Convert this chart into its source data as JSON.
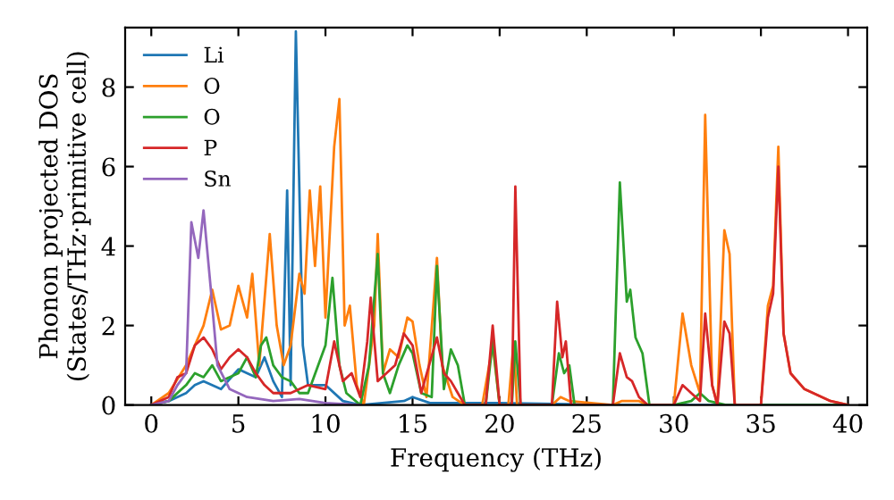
{
  "chart_data": {
    "type": "line",
    "xlabel": "Frequency (THz)",
    "ylabel": "Phonon projected DOS\n(States/THz·primitive cell)",
    "xlim": [
      -1.5,
      41.1
    ],
    "ylim": [
      0,
      9.5
    ],
    "xticks": [
      0,
      5,
      10,
      15,
      20,
      25,
      30,
      35,
      40
    ],
    "yticks": [
      0,
      2,
      4,
      6,
      8
    ],
    "legend": "top left",
    "grid": false,
    "marker": "none",
    "line_style": "solid",
    "series": [
      {
        "name": "Li",
        "color": "#1f77b4",
        "x": [
          0,
          1,
          2,
          2.5,
          3,
          4,
          5,
          6,
          6.5,
          7,
          7.5,
          7.8,
          8.0,
          8.3,
          8.7,
          9,
          10,
          11,
          12,
          14.5,
          15,
          16,
          20,
          27,
          40
        ],
        "values": [
          0,
          0.1,
          0.3,
          0.5,
          0.6,
          0.4,
          0.9,
          0.7,
          1.2,
          0.6,
          0.2,
          5.4,
          0.5,
          9.4,
          1.5,
          0.5,
          0.5,
          0.1,
          0,
          0.1,
          0.2,
          0.05,
          0.05,
          0,
          0
        ]
      },
      {
        "name": "O",
        "color": "#ff7f0e",
        "x": [
          0,
          1,
          2,
          2.5,
          3,
          3.5,
          4,
          4.5,
          5,
          5.5,
          5.8,
          6.2,
          6.8,
          7.2,
          7.6,
          8,
          8.5,
          8.8,
          9.1,
          9.4,
          9.7,
          10,
          10.5,
          10.8,
          11.1,
          11.4,
          11.8,
          12.2,
          12.8,
          13,
          13.3,
          13.7,
          14.2,
          14.7,
          15,
          15.4,
          15.8,
          16.4,
          16.7,
          17.3,
          18,
          19,
          19.6,
          20,
          20.5,
          20.8,
          21,
          23,
          23.5,
          24,
          26.5,
          27,
          28,
          28.5,
          30,
          30.5,
          31,
          31.5,
          31.8,
          32.2,
          32.5,
          32.9,
          33.2,
          33.5,
          35,
          35.4,
          35.7,
          36,
          36.3,
          36.7,
          37.5,
          39,
          40
        ],
        "values": [
          0,
          0.3,
          1.0,
          1.5,
          2.0,
          2.9,
          1.9,
          2.0,
          3.0,
          2.2,
          3.3,
          1.0,
          4.3,
          2.0,
          1.0,
          1.5,
          3.3,
          2.8,
          5.4,
          3.5,
          5.5,
          2.2,
          6.5,
          7.7,
          2.0,
          2.5,
          0.5,
          0,
          2.0,
          4.3,
          0.8,
          1.4,
          1.2,
          2.2,
          2.1,
          1.0,
          0.2,
          3.7,
          1.0,
          0.2,
          0,
          0,
          1.5,
          0,
          0,
          1.6,
          0,
          0,
          0.2,
          0.1,
          0,
          0.1,
          0.1,
          0,
          0,
          2.3,
          1.0,
          0.3,
          7.3,
          0.5,
          0,
          4.4,
          3.8,
          0,
          0,
          2.5,
          3.0,
          6.5,
          1.8,
          0.8,
          0.4,
          0.1,
          0
        ]
      },
      {
        "name": "O",
        "color": "#2ca02c",
        "x": [
          0,
          1,
          2,
          2.5,
          3,
          3.5,
          4,
          5,
          5.5,
          6,
          6.3,
          6.6,
          7,
          7.5,
          8,
          8.5,
          9,
          10,
          10.4,
          10.8,
          11.2,
          12,
          12.5,
          13,
          13.3,
          13.7,
          14.2,
          14.7,
          15,
          15.5,
          16.1,
          16.4,
          16.8,
          17.2,
          17.6,
          18,
          19.2,
          19.6,
          20,
          20.7,
          20.9,
          21.2,
          23,
          23.4,
          23.7,
          24,
          24.3,
          26.5,
          26.9,
          27.3,
          27.5,
          27.8,
          28.2,
          28.6,
          30,
          31,
          31.5,
          32,
          33,
          40
        ],
        "values": [
          0,
          0.1,
          0.5,
          0.8,
          0.7,
          1.0,
          0.6,
          0.8,
          1.2,
          0.7,
          1.5,
          1.7,
          1.0,
          0.7,
          0.6,
          0.3,
          0.3,
          1.5,
          3.2,
          1.0,
          0.3,
          0,
          1.0,
          3.8,
          0.8,
          0.3,
          1.0,
          1.5,
          1.3,
          0.3,
          0.2,
          3.5,
          0.4,
          1.4,
          1.0,
          0,
          0,
          1.6,
          0,
          0,
          1.6,
          0,
          0,
          1.3,
          0.8,
          1.0,
          0,
          0,
          5.6,
          2.6,
          2.9,
          1.7,
          1.3,
          0,
          0,
          0.1,
          0.3,
          0.1,
          0,
          0
        ]
      },
      {
        "name": "P",
        "color": "#d62728",
        "x": [
          0,
          1,
          1.5,
          2,
          2.5,
          3,
          3.5,
          4,
          4.5,
          5,
          5.5,
          6,
          6.5,
          7,
          8,
          9,
          10,
          10.5,
          11,
          11.5,
          12,
          12.4,
          12.6,
          13,
          13.5,
          14,
          14.5,
          15,
          15.5,
          16.4,
          16.8,
          17.2,
          17.6,
          18,
          19.2,
          19.6,
          20,
          20.7,
          20.9,
          21.2,
          23,
          23.3,
          23.6,
          23.8,
          24.1,
          26.5,
          26.9,
          27.3,
          27.6,
          28,
          28.5,
          30,
          30.5,
          31,
          31.5,
          31.8,
          32.2,
          32.5,
          32.9,
          33.2,
          33.5,
          35,
          35.4,
          35.7,
          36,
          36.3,
          36.7,
          37.5,
          39,
          40
        ],
        "values": [
          0,
          0.2,
          0.7,
          0.8,
          1.5,
          1.7,
          1.4,
          0.9,
          1.2,
          1.4,
          1.2,
          0.8,
          0.5,
          0.3,
          0.3,
          0.5,
          0.4,
          1.6,
          0.6,
          0.8,
          0.2,
          1.6,
          2.7,
          0.6,
          0.8,
          1.0,
          1.8,
          1.5,
          0.3,
          1.7,
          0.8,
          0.6,
          0.3,
          0,
          0,
          2.0,
          0,
          0,
          5.5,
          0,
          0,
          2.6,
          1.2,
          1.6,
          0,
          0,
          1.3,
          0.7,
          0.6,
          0.2,
          0,
          0,
          0.5,
          0.3,
          0.1,
          2.3,
          0.5,
          0,
          2.1,
          1.8,
          0,
          0,
          2.2,
          2.8,
          6.0,
          1.8,
          0.8,
          0.4,
          0.1,
          0
        ]
      },
      {
        "name": "Sn",
        "color": "#9467bd",
        "x": [
          0,
          1,
          1.5,
          2,
          2.3,
          2.7,
          3,
          3.4,
          3.8,
          4.5,
          5.5,
          7,
          8.5,
          10,
          12
        ],
        "values": [
          0,
          0.1,
          0.5,
          0.8,
          4.6,
          3.7,
          4.9,
          3.0,
          1.0,
          0.4,
          0.2,
          0.1,
          0.15,
          0.05,
          0
        ]
      }
    ]
  }
}
